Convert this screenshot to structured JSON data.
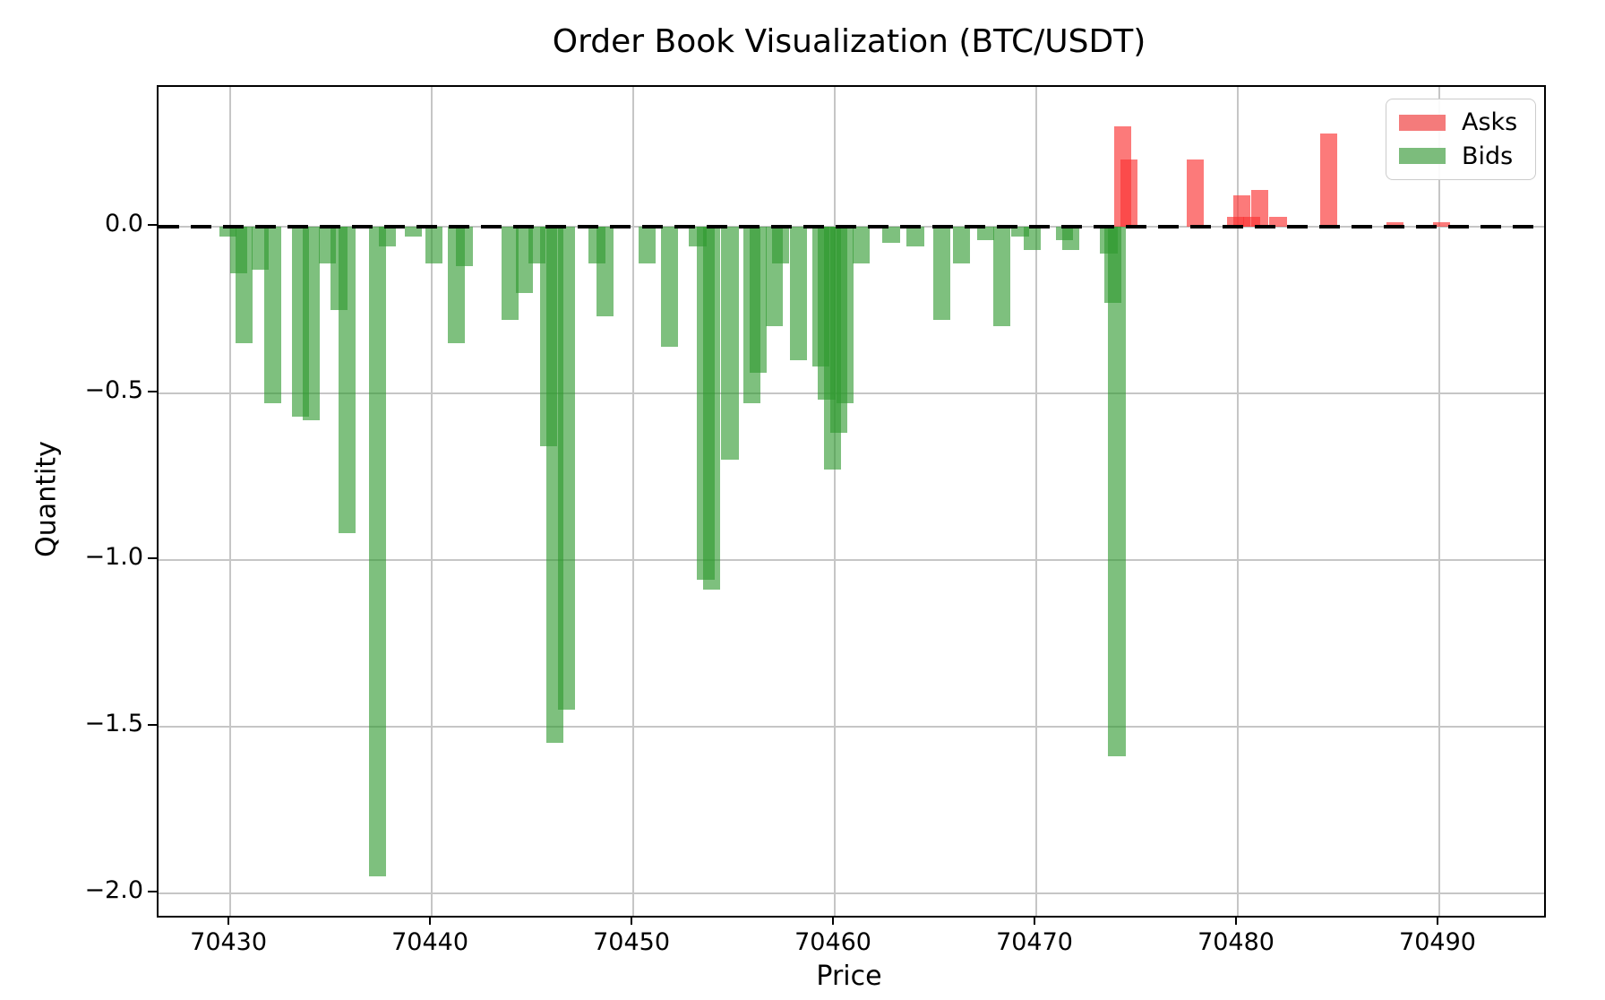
{
  "chart_data": {
    "type": "bar",
    "title": "Order Book Visualization (BTC/USDT)",
    "xlabel": "Price",
    "ylabel": "Quantity",
    "grid": true,
    "legend_position": "upper right",
    "zero_line": {
      "style": "dashed",
      "color": "#000000",
      "y": 0
    },
    "axes": {
      "x_range": [
        70426.44,
        70495.2
      ],
      "y_range": [
        -2.068,
        0.419
      ],
      "x_ticks": [
        70430,
        70440,
        70450,
        70460,
        70470,
        70480,
        70490
      ],
      "y_ticks": [
        0.0,
        -0.5,
        -1.0,
        -1.5,
        -2.0
      ],
      "y_tick_labels": [
        "0.0",
        "−0.5",
        "−1.0",
        "−1.5",
        "−2.0"
      ]
    },
    "bar_width": 0.85,
    "series": [
      {
        "name": "Asks",
        "color": "rgba(250,50,50,0.65)",
        "legend_color": "#f47b7b",
        "points": [
          [
            70474.3,
            0.3
          ],
          [
            70474.6,
            0.2
          ],
          [
            70477.9,
            0.2
          ],
          [
            70479.9,
            0.03
          ],
          [
            70480.2,
            0.095
          ],
          [
            70480.7,
            0.03
          ],
          [
            70481.1,
            0.11
          ],
          [
            70482.0,
            0.03
          ],
          [
            70484.5,
            0.28
          ],
          [
            70487.8,
            0.012
          ],
          [
            70490.1,
            0.012
          ]
        ]
      },
      {
        "name": "Bids",
        "color": "rgba(46,154,46,0.62)",
        "legend_color": "#7cbc7c",
        "points": [
          [
            70429.9,
            -0.03
          ],
          [
            70430.4,
            -0.14
          ],
          [
            70430.7,
            -0.35
          ],
          [
            70431.5,
            -0.13
          ],
          [
            70432.1,
            -0.53
          ],
          [
            70433.5,
            -0.57
          ],
          [
            70434.0,
            -0.58
          ],
          [
            70434.8,
            -0.11
          ],
          [
            70435.4,
            -0.25
          ],
          [
            70435.8,
            -0.92
          ],
          [
            70437.3,
            -1.95
          ],
          [
            70437.8,
            -0.06
          ],
          [
            70439.1,
            -0.03
          ],
          [
            70440.1,
            -0.11
          ],
          [
            70441.2,
            -0.35
          ],
          [
            70441.6,
            -0.12
          ],
          [
            70443.9,
            -0.28
          ],
          [
            70444.6,
            -0.2
          ],
          [
            70445.2,
            -0.11
          ],
          [
            70445.8,
            -0.66
          ],
          [
            70446.1,
            -1.55
          ],
          [
            70446.7,
            -1.45
          ],
          [
            70448.2,
            -0.11
          ],
          [
            70448.6,
            -0.27
          ],
          [
            70450.7,
            -0.11
          ],
          [
            70451.8,
            -0.36
          ],
          [
            70453.2,
            -0.06
          ],
          [
            70453.6,
            -1.06
          ],
          [
            70453.9,
            -1.09
          ],
          [
            70454.8,
            -0.7
          ],
          [
            70455.9,
            -0.53
          ],
          [
            70456.2,
            -0.44
          ],
          [
            70457.0,
            -0.3
          ],
          [
            70457.3,
            -0.11
          ],
          [
            70458.2,
            -0.4
          ],
          [
            70459.3,
            -0.42
          ],
          [
            70459.6,
            -0.52
          ],
          [
            70459.9,
            -0.73
          ],
          [
            70460.2,
            -0.62
          ],
          [
            70460.5,
            -0.53
          ],
          [
            70461.3,
            -0.11
          ],
          [
            70462.8,
            -0.05
          ],
          [
            70464.0,
            -0.06
          ],
          [
            70465.3,
            -0.28
          ],
          [
            70466.3,
            -0.11
          ],
          [
            70467.5,
            -0.04
          ],
          [
            70468.3,
            -0.3
          ],
          [
            70469.2,
            -0.03
          ],
          [
            70469.8,
            -0.07
          ],
          [
            70471.4,
            -0.04
          ],
          [
            70471.7,
            -0.07
          ],
          [
            70473.6,
            -0.08
          ],
          [
            70473.8,
            -0.23
          ],
          [
            70474.0,
            -1.59
          ]
        ]
      }
    ],
    "colors": {
      "grid": "#c6c6c6",
      "spine": "#000000",
      "background": "#ffffff"
    }
  }
}
